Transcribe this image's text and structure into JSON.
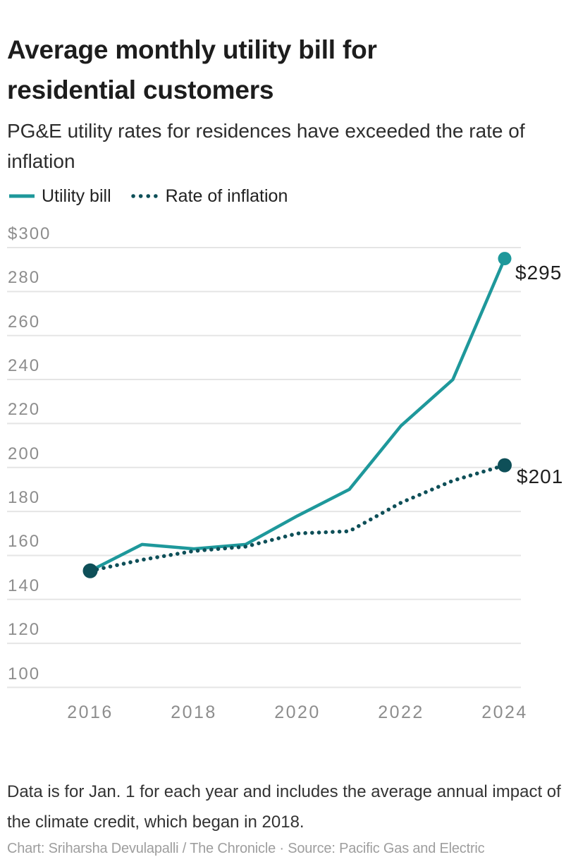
{
  "header": {
    "title": "Average monthly utility bill for residential customers",
    "subtitle": "PG&E utility rates for residences have exceeded the rate of inflation"
  },
  "legend": {
    "items": [
      {
        "label": "Utility bill",
        "style": "solid",
        "color": "#1E989B"
      },
      {
        "label": "Rate of inflation",
        "style": "dotted",
        "color": "#0E4F58"
      }
    ]
  },
  "chart_data": {
    "type": "line",
    "title": "Average monthly utility bill for residential customers",
    "x": [
      2016,
      2017,
      2018,
      2019,
      2020,
      2021,
      2022,
      2023,
      2024
    ],
    "series": [
      {
        "name": "Utility bill",
        "style": "solid",
        "color": "#1E989B",
        "values": [
          153,
          165,
          163,
          165,
          178,
          190,
          219,
          240,
          295
        ],
        "end_label": "$295"
      },
      {
        "name": "Rate of inflation",
        "style": "dotted",
        "color": "#0E4F58",
        "values": [
          153,
          158,
          162,
          164,
          170,
          171,
          184,
          194,
          201
        ],
        "end_label": "$201"
      }
    ],
    "y_axis": {
      "tick_values": [
        300,
        280,
        260,
        240,
        220,
        200,
        180,
        160,
        140,
        120,
        100
      ],
      "tick_labels": [
        "$300",
        "280",
        "260",
        "240",
        "220",
        "200",
        "180",
        "160",
        "140",
        "120",
        "100"
      ],
      "range": [
        100,
        300
      ]
    },
    "x_axis": {
      "tick_values": [
        2016,
        2018,
        2020,
        2022,
        2024
      ],
      "tick_labels": [
        "2016",
        "2018",
        "2020",
        "2022",
        "2024"
      ]
    },
    "grid": true,
    "gridline_color": "#e5e5e5",
    "legend_position": "top-left"
  },
  "footer": {
    "note": "Data is for Jan. 1 for each year and includes the average annual impact of the climate credit, which began in 2018.",
    "credit": "Chart: Sriharsha Devulapalli / The Chronicle · Source: Pacific Gas and Electric"
  }
}
